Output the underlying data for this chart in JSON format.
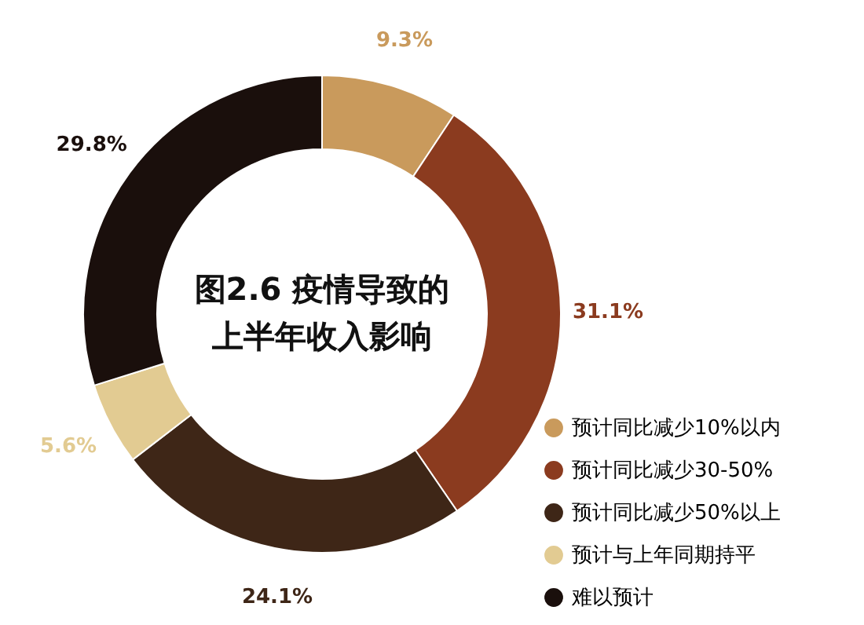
{
  "chart_data": {
    "type": "donut",
    "title": "图2.6 疫情导致的上半年收入影响",
    "categories": [
      "预计同比减少10%以内",
      "预计同比减少30-50%",
      "预计同比减少50%以上",
      "预计与上年同期持平",
      "难以预计"
    ],
    "values": [
      9.3,
      31.1,
      24.1,
      5.6,
      29.8
    ],
    "colors": [
      "#c99a5c",
      "#8b3b1f",
      "#3e2617",
      "#e2cb92",
      "#1a0f0c"
    ],
    "value_labels": [
      "9.3%",
      "31.1%",
      "24.1%",
      "5.6%",
      "29.8%"
    ],
    "legend": "bottom right"
  }
}
